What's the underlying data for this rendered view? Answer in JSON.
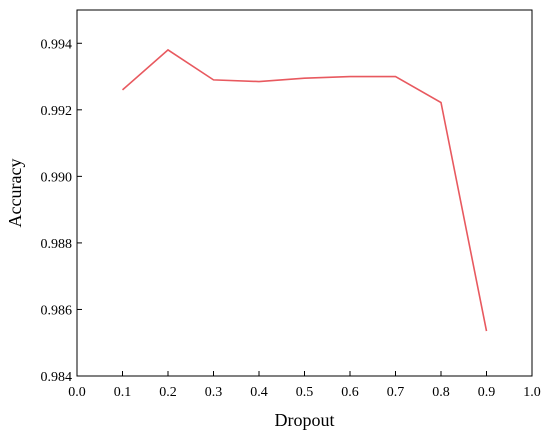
{
  "chart_data": {
    "type": "line",
    "title": "",
    "xlabel": "Dropout",
    "ylabel": "Accuracy",
    "xlim": [
      0.0,
      1.0
    ],
    "ylim": [
      0.984,
      0.995
    ],
    "x_ticks": [
      0.0,
      0.1,
      0.2,
      0.3,
      0.4,
      0.5,
      0.6,
      0.7,
      0.8,
      0.9,
      1.0
    ],
    "x_tick_labels": [
      "0.0",
      "0.1",
      "0.2",
      "0.3",
      "0.4",
      "0.5",
      "0.6",
      "0.7",
      "0.8",
      "0.9",
      "1.0"
    ],
    "y_ticks": [
      0.984,
      0.986,
      0.988,
      0.99,
      0.992,
      0.994
    ],
    "y_tick_labels": [
      "0.984",
      "0.986",
      "0.988",
      "0.990",
      "0.992",
      "0.994"
    ],
    "grid": false,
    "legend": "none",
    "series": [
      {
        "color": "#e8595f",
        "x": [
          0.1,
          0.2,
          0.3,
          0.4,
          0.5,
          0.6,
          0.7,
          0.8,
          0.9
        ],
        "y": [
          0.9926,
          0.9938,
          0.9929,
          0.99285,
          0.99295,
          0.993,
          0.993,
          0.99222,
          0.98535
        ]
      }
    ]
  }
}
